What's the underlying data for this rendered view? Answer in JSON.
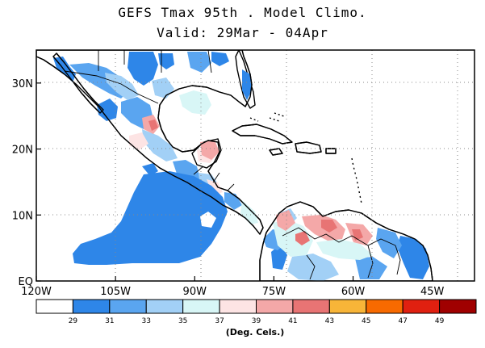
{
  "title": "GEFS Tmax 95th . Model Climo.",
  "subtitle": "Valid: 29Mar - 04Apr",
  "map": {
    "lon_range": [
      -120,
      -37
    ],
    "lat_range": [
      0,
      35
    ],
    "x_ticks": [
      {
        "value": -120,
        "label": "120W"
      },
      {
        "value": -105,
        "label": "105W"
      },
      {
        "value": -90,
        "label": "90W"
      },
      {
        "value": -75,
        "label": "75W"
      },
      {
        "value": -60,
        "label": "60W"
      },
      {
        "value": -45,
        "label": "45W"
      }
    ],
    "y_ticks": [
      {
        "value": 0,
        "label": "EQ"
      },
      {
        "value": 10,
        "label": "10N"
      },
      {
        "value": 20,
        "label": "20N"
      },
      {
        "value": 30,
        "label": "30N"
      }
    ],
    "grid": "dotted",
    "ocean_color": "#ffffff",
    "coast_color": "#000000"
  },
  "colorbar": {
    "colors": [
      "#ffffff",
      "#2e86e8",
      "#5aa5f0",
      "#a2d0f6",
      "#d8f6f6",
      "#fde4e4",
      "#f4a8a8",
      "#e87474",
      "#f8b538",
      "#f86a00",
      "#e02010",
      "#a00000"
    ],
    "labels": [
      "29",
      "31",
      "33",
      "35",
      "37",
      "39",
      "41",
      "43",
      "45",
      "47",
      "49"
    ],
    "units": "(Deg. Cels.)"
  }
}
